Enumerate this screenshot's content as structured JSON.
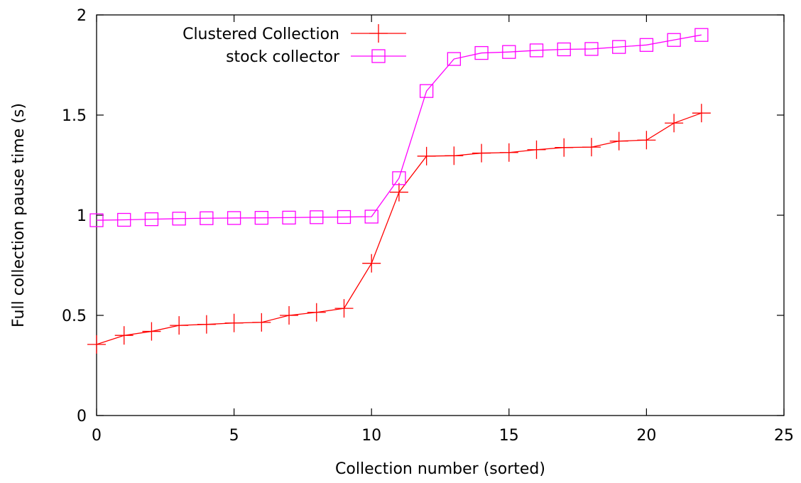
{
  "chart_data": {
    "type": "line",
    "xlabel": "Collection number (sorted)",
    "ylabel": "Full collection pause time (s)",
    "xlim": [
      0,
      25
    ],
    "ylim": [
      0,
      2
    ],
    "xticks": [
      0,
      5,
      10,
      15,
      20,
      25
    ],
    "yticks": [
      0,
      0.5,
      1,
      1.5,
      2
    ],
    "xtick_labels": [
      "0",
      "5",
      "10",
      "15",
      "20",
      "25"
    ],
    "ytick_labels": [
      "0",
      "0.5",
      "1",
      "1.5",
      "2"
    ],
    "grid": false,
    "legend_position": "top-left",
    "x": [
      0,
      1,
      2,
      3,
      4,
      5,
      6,
      7,
      8,
      9,
      10,
      11,
      12,
      13,
      14,
      15,
      16,
      17,
      18,
      19,
      20,
      21,
      22
    ],
    "series": [
      {
        "name": "Clustered Collection",
        "color": "#ff0000",
        "marker": "plus",
        "values": [
          0.355,
          0.4,
          0.42,
          0.45,
          0.455,
          0.462,
          0.465,
          0.5,
          0.515,
          0.535,
          0.76,
          1.115,
          1.295,
          1.297,
          1.31,
          1.313,
          1.327,
          1.338,
          1.34,
          1.37,
          1.375,
          1.46,
          1.51
        ]
      },
      {
        "name": "stock collector",
        "color": "#ff00ff",
        "marker": "square",
        "values": [
          0.975,
          0.977,
          0.98,
          0.983,
          0.985,
          0.986,
          0.987,
          0.988,
          0.99,
          0.991,
          0.993,
          1.185,
          1.62,
          1.78,
          1.81,
          1.815,
          1.823,
          1.828,
          1.83,
          1.84,
          1.85,
          1.875,
          1.9
        ]
      }
    ]
  }
}
